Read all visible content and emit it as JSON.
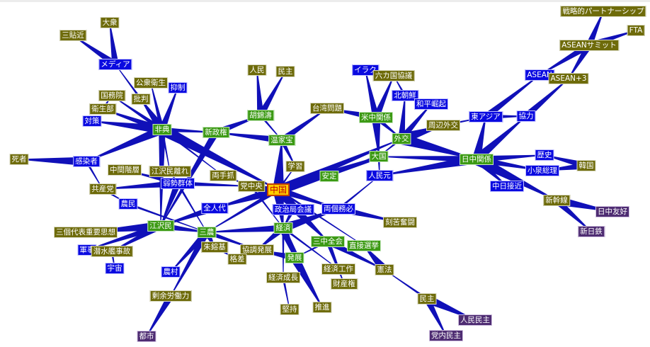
{
  "colors": {
    "olive": "#6e6b0a",
    "green": "#3c9a14",
    "blue": "#0a0ae0",
    "purple": "#4e2c72",
    "center": "#ffcc00",
    "edge": "#1010b8"
  },
  "nodes": [
    {
      "id": "china",
      "label": "中国",
      "type": "center"
    },
    {
      "id": "sars",
      "label": "非典",
      "type": "green"
    },
    {
      "id": "hu",
      "label": "胡錦濤",
      "type": "green"
    },
    {
      "id": "wen",
      "label": "温家宝",
      "type": "green"
    },
    {
      "id": "newgov",
      "label": "新政権",
      "type": "green"
    },
    {
      "id": "study",
      "label": "学習",
      "type": "olive"
    },
    {
      "id": "stable",
      "label": "安定",
      "type": "green"
    },
    {
      "id": "bigpow",
      "label": "大国",
      "type": "green"
    },
    {
      "id": "rmb",
      "label": "人民元",
      "type": "blue"
    },
    {
      "id": "liangge",
      "label": "両個務必",
      "type": "blue"
    },
    {
      "id": "kuku",
      "label": "刻苦奮闘",
      "type": "olive"
    },
    {
      "id": "central",
      "label": "党中央",
      "type": "olive"
    },
    {
      "id": "lianshou",
      "label": "両手抓",
      "type": "olive"
    },
    {
      "id": "npc",
      "label": "全人代",
      "type": "blue"
    },
    {
      "id": "polit",
      "label": "政治局会議",
      "type": "blue"
    },
    {
      "id": "econ",
      "label": "経済",
      "type": "green"
    },
    {
      "id": "third",
      "label": "三中全会",
      "type": "green"
    },
    {
      "id": "direct",
      "label": "直接選挙",
      "type": "green"
    },
    {
      "id": "const",
      "label": "憲法",
      "type": "olive"
    },
    {
      "id": "property",
      "label": "財産権",
      "type": "olive"
    },
    {
      "id": "demo2",
      "label": "民主",
      "type": "olive"
    },
    {
      "id": "peopledemo",
      "label": "人民民主",
      "type": "purple"
    },
    {
      "id": "partydemo",
      "label": "党内民主",
      "type": "purple"
    },
    {
      "id": "develop",
      "label": "発展",
      "type": "green"
    },
    {
      "id": "econwork",
      "label": "経済工作",
      "type": "olive"
    },
    {
      "id": "growth",
      "label": "経済成長",
      "type": "olive"
    },
    {
      "id": "persist",
      "label": "堅持",
      "type": "olive"
    },
    {
      "id": "promote",
      "label": "推進",
      "type": "olive"
    },
    {
      "id": "coord",
      "label": "協調発展",
      "type": "olive"
    },
    {
      "id": "gap",
      "label": "格差",
      "type": "olive"
    },
    {
      "id": "zhu",
      "label": "朱鎔基",
      "type": "olive"
    },
    {
      "id": "sannong",
      "label": "三農",
      "type": "green"
    },
    {
      "id": "jiang",
      "label": "江沢民",
      "type": "green"
    },
    {
      "id": "weak",
      "label": "弱勢群体",
      "type": "blue"
    },
    {
      "id": "jiangaway",
      "label": "江沢民離れ",
      "type": "olive"
    },
    {
      "id": "middle",
      "label": "中間階層",
      "type": "olive"
    },
    {
      "id": "ccp",
      "label": "共産党",
      "type": "olive"
    },
    {
      "id": "farmer",
      "label": "農民",
      "type": "blue"
    },
    {
      "id": "infected",
      "label": "感染者",
      "type": "blue"
    },
    {
      "id": "dead",
      "label": "死者",
      "type": "olive"
    },
    {
      "id": "three",
      "label": "三個代表重要思想",
      "type": "olive"
    },
    {
      "id": "military",
      "label": "軍事",
      "type": "blue"
    },
    {
      "id": "sub",
      "label": "潜水艦事故",
      "type": "olive"
    },
    {
      "id": "space",
      "label": "宇宙",
      "type": "blue"
    },
    {
      "id": "rural",
      "label": "農村",
      "type": "blue"
    },
    {
      "id": "surplus",
      "label": "剰余労働力",
      "type": "olive"
    },
    {
      "id": "city",
      "label": "都市",
      "type": "purple"
    },
    {
      "id": "masses",
      "label": "大衆",
      "type": "olive"
    },
    {
      "id": "santiejin",
      "label": "三貼近",
      "type": "olive"
    },
    {
      "id": "media",
      "label": "メディア",
      "type": "blue"
    },
    {
      "id": "health",
      "label": "公衆衛生",
      "type": "olive"
    },
    {
      "id": "suppress",
      "label": "抑制",
      "type": "blue"
    },
    {
      "id": "criticism",
      "label": "批判",
      "type": "olive"
    },
    {
      "id": "council",
      "label": "国務院",
      "type": "olive"
    },
    {
      "id": "ministry",
      "label": "衛生部",
      "type": "olive"
    },
    {
      "id": "measures",
      "label": "対策",
      "type": "blue"
    },
    {
      "id": "people",
      "label": "人民",
      "type": "olive"
    },
    {
      "id": "demo1",
      "label": "民主",
      "type": "olive"
    },
    {
      "id": "taiwan",
      "label": "台湾問題",
      "type": "olive"
    },
    {
      "id": "iraq",
      "label": "イラク",
      "type": "blue"
    },
    {
      "id": "sixparty",
      "label": "六カ国協議",
      "type": "olive"
    },
    {
      "id": "nk",
      "label": "北朝鮮",
      "type": "blue"
    },
    {
      "id": "peaceful",
      "label": "和平崛起",
      "type": "blue"
    },
    {
      "id": "uschina",
      "label": "米中関係",
      "type": "green"
    },
    {
      "id": "diplo",
      "label": "外交",
      "type": "green"
    },
    {
      "id": "periph",
      "label": "周辺外交",
      "type": "olive"
    },
    {
      "id": "eastasia",
      "label": "東アジア",
      "type": "blue"
    },
    {
      "id": "coop",
      "label": "協力",
      "type": "blue"
    },
    {
      "id": "asean",
      "label": "ASEAN",
      "type": "blue"
    },
    {
      "id": "asean3",
      "label": "ASEAN+3",
      "type": "olive"
    },
    {
      "id": "summit",
      "label": "ASEANサミット",
      "type": "olive"
    },
    {
      "id": "strategic",
      "label": "戦略的パートナーシップ",
      "type": "olive"
    },
    {
      "id": "fta",
      "label": "FTA",
      "type": "olive"
    },
    {
      "id": "japanchina",
      "label": "日中関係",
      "type": "green"
    },
    {
      "id": "history",
      "label": "歴史",
      "type": "blue"
    },
    {
      "id": "korea",
      "label": "韓国",
      "type": "olive"
    },
    {
      "id": "koizumi",
      "label": "小泉総理",
      "type": "blue"
    },
    {
      "id": "approach",
      "label": "中日接近",
      "type": "blue"
    },
    {
      "id": "shinkansen",
      "label": "新幹線",
      "type": "olive"
    },
    {
      "id": "friendship",
      "label": "日中友好",
      "type": "purple"
    },
    {
      "id": "nippon",
      "label": "新日鉄",
      "type": "purple"
    }
  ],
  "edges": [
    [
      "media",
      "masses",
      3
    ],
    [
      "media",
      "santiejin",
      3
    ],
    [
      "criticism",
      "media",
      1
    ],
    [
      "sars",
      "criticism",
      4
    ],
    [
      "sars",
      "health",
      2
    ],
    [
      "sars",
      "suppress",
      3
    ],
    [
      "sars",
      "council",
      2
    ],
    [
      "ministry",
      "council",
      1
    ],
    [
      "sars",
      "ministry",
      3
    ],
    [
      "sars",
      "measures",
      4
    ],
    [
      "sars",
      "newgov",
      2
    ],
    [
      "sars",
      "infected",
      4
    ],
    [
      "infected",
      "dead",
      4
    ],
    [
      "sars",
      "jiangaway",
      1
    ],
    [
      "sars",
      "china",
      5
    ],
    [
      "sars",
      "lianshou",
      1
    ],
    [
      "sars",
      "jiang",
      3
    ],
    [
      "newgov",
      "hu",
      3
    ],
    [
      "wen",
      "newgov",
      3
    ],
    [
      "newgov",
      "jiang",
      3
    ],
    [
      "hu",
      "people",
      3
    ],
    [
      "hu",
      "demo1",
      3
    ],
    [
      "hu",
      "wen",
      1
    ],
    [
      "china",
      "wen",
      5
    ],
    [
      "wen",
      "study",
      2
    ],
    [
      "wen",
      "taiwan",
      3
    ],
    [
      "uschina",
      "taiwan",
      3
    ],
    [
      "uschina",
      "iraq",
      3
    ],
    [
      "uschina",
      "sixparty",
      3
    ],
    [
      "nk",
      "sixparty",
      1
    ],
    [
      "diplo",
      "nk",
      3
    ],
    [
      "diplo",
      "peaceful",
      3
    ],
    [
      "uschina",
      "diplo",
      2
    ],
    [
      "uschina",
      "bigpow",
      4
    ],
    [
      "diplo",
      "bigpow",
      1
    ],
    [
      "diplo",
      "periph",
      5
    ],
    [
      "diplo",
      "japanchina",
      5
    ],
    [
      "china",
      "diplo",
      4
    ],
    [
      "periph",
      "eastasia",
      1
    ],
    [
      "eastasia",
      "coop",
      2
    ],
    [
      "eastasia",
      "asean",
      3
    ],
    [
      "coop",
      "asean3",
      3
    ],
    [
      "japanchina",
      "eastasia",
      4
    ],
    [
      "japanchina",
      "coop",
      4
    ],
    [
      "summit",
      "asean",
      3
    ],
    [
      "summit",
      "asean3",
      3
    ],
    [
      "summit",
      "strategic",
      3
    ],
    [
      "summit",
      "fta",
      3
    ],
    [
      "japanchina",
      "history",
      3
    ],
    [
      "japanchina",
      "koizumi",
      3
    ],
    [
      "korea",
      "history",
      3
    ],
    [
      "korea",
      "koizumi",
      3
    ],
    [
      "japanchina",
      "approach",
      3
    ],
    [
      "japanchina",
      "shinkansen",
      5
    ],
    [
      "shinkansen",
      "friendship",
      4
    ],
    [
      "shinkansen",
      "nippon",
      3
    ],
    [
      "japanchina",
      "rmb",
      4
    ],
    [
      "japanchina",
      "bigpow",
      3
    ],
    [
      "bigpow",
      "stable",
      2
    ],
    [
      "bigpow",
      "rmb",
      1
    ],
    [
      "china",
      "bigpow",
      4
    ],
    [
      "liangge",
      "rmb",
      1
    ],
    [
      "china",
      "stable",
      5
    ],
    [
      "china",
      "study",
      1
    ],
    [
      "china",
      "central",
      3
    ],
    [
      "china",
      "npc",
      4
    ],
    [
      "china",
      "polit",
      5
    ],
    [
      "china",
      "econ",
      5
    ],
    [
      "china",
      "liangge",
      3
    ],
    [
      "china",
      "third",
      4
    ],
    [
      "china",
      "direct",
      1
    ],
    [
      "china",
      "sannong",
      2
    ],
    [
      "liangge",
      "kuku",
      3
    ],
    [
      "econ",
      "liangge",
      4
    ],
    [
      "third",
      "const",
      3
    ],
    [
      "third",
      "property",
      2
    ],
    [
      "third",
      "develop",
      1
    ],
    [
      "const",
      "direct",
      4
    ],
    [
      "demo2",
      "const",
      1
    ],
    [
      "demo2",
      "peopledemo",
      4
    ],
    [
      "demo2",
      "partydemo",
      3
    ],
    [
      "econ",
      "develop",
      4
    ],
    [
      "econ",
      "growth",
      1
    ],
    [
      "econ",
      "coord",
      3
    ],
    [
      "econ",
      "sannong",
      3
    ],
    [
      "econ",
      "promote",
      2
    ],
    [
      "econ",
      "econwork",
      1
    ],
    [
      "develop",
      "coord",
      3
    ],
    [
      "develop",
      "promote",
      4
    ],
    [
      "growth",
      "persist",
      1
    ],
    [
      "polit",
      "econ",
      2
    ],
    [
      "polit",
      "third",
      2
    ],
    [
      "central",
      "econ",
      1
    ],
    [
      "central",
      "lianshou",
      1
    ],
    [
      "weak",
      "central",
      2
    ],
    [
      "weak",
      "middle",
      2
    ],
    [
      "weak",
      "jiangaway",
      1
    ],
    [
      "weak",
      "ccp",
      3
    ],
    [
      "weak",
      "jiang",
      3
    ],
    [
      "weak",
      "sannong",
      1
    ],
    [
      "ccp",
      "farmer",
      1
    ],
    [
      "infected",
      "ccp",
      1
    ],
    [
      "farmer",
      "sannong",
      1
    ],
    [
      "jiang",
      "sannong",
      3
    ],
    [
      "npc",
      "jiang",
      3
    ],
    [
      "jiang",
      "three",
      4
    ],
    [
      "jiang",
      "military",
      3
    ],
    [
      "jiang",
      "sub",
      3
    ],
    [
      "sub",
      "space",
      1
    ],
    [
      "sannong",
      "rural",
      3
    ],
    [
      "sannong",
      "surplus",
      3
    ],
    [
      "surplus",
      "city",
      3
    ],
    [
      "sannong",
      "zhu",
      3
    ],
    [
      "zhu",
      "gap",
      1
    ],
    [
      "sannong",
      "coord",
      2
    ]
  ]
}
